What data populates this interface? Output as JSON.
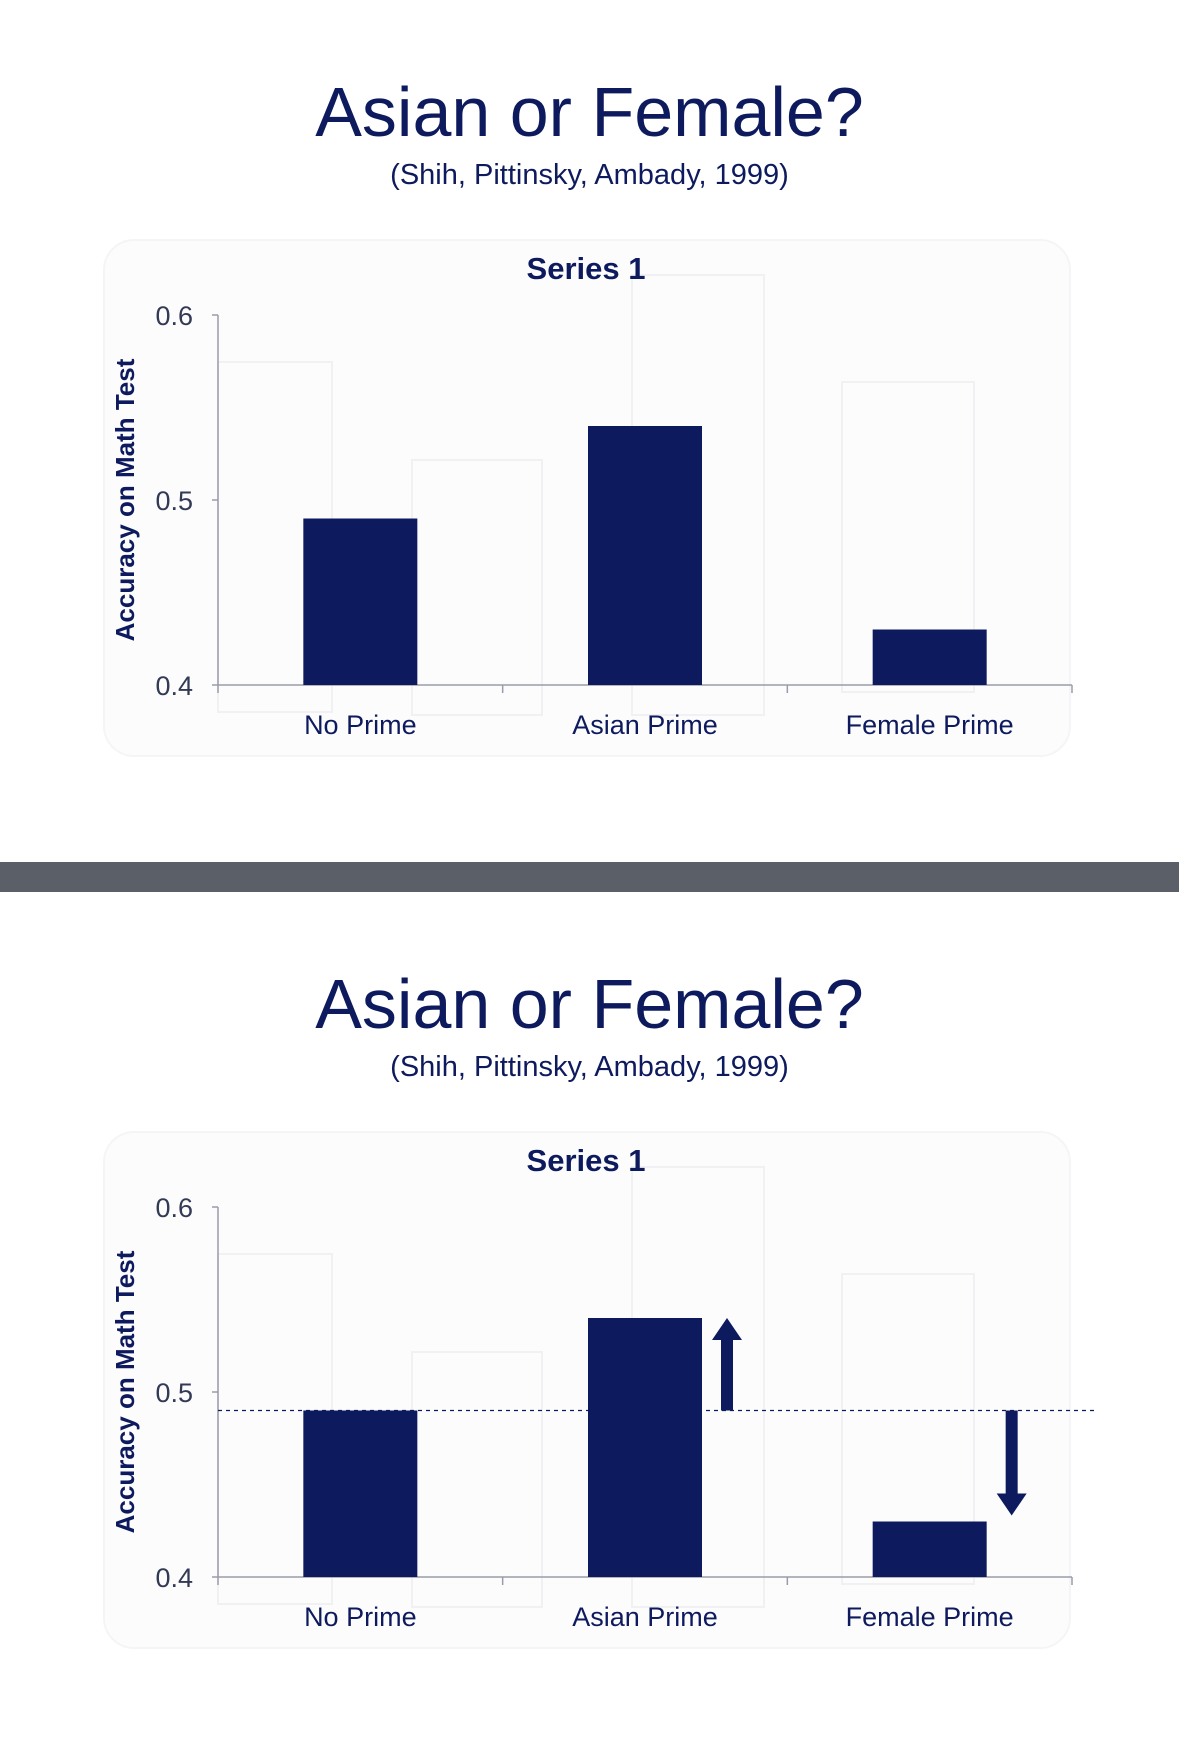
{
  "slides": [
    {
      "title": "Asian or Female?",
      "subtitle": "(Shih, Pittinsky, Ambady, 1999)",
      "show_baseline": false,
      "chart_data": {
        "type": "bar",
        "title": "Series 1",
        "xlabel": "",
        "ylabel": "Accuracy on Math Test",
        "categories": [
          "No Prime",
          "Asian Prime",
          "Female Prime"
        ],
        "values": [
          0.49,
          0.54,
          0.43
        ],
        "ylim": [
          0.4,
          0.6
        ],
        "yticks": [
          "0.6",
          "0.5",
          "0.4"
        ],
        "grid": false,
        "bar_color": "#0e1a5e"
      }
    },
    {
      "title": "Asian or Female?",
      "subtitle": "(Shih, Pittinsky, Ambady, 1999)",
      "show_baseline": true,
      "chart_data": {
        "type": "bar",
        "title": "Series 1",
        "xlabel": "",
        "ylabel": "Accuracy on Math Test",
        "categories": [
          "No Prime",
          "Asian Prime",
          "Female Prime"
        ],
        "values": [
          0.49,
          0.54,
          0.43
        ],
        "ylim": [
          0.4,
          0.6
        ],
        "yticks": [
          "0.6",
          "0.5",
          "0.4"
        ],
        "grid": false,
        "bar_color": "#0e1a5e",
        "baseline": 0.49,
        "arrows": [
          {
            "category": "Asian Prime",
            "direction": "up",
            "from": 0.49,
            "to": 0.54
          },
          {
            "category": "Female Prime",
            "direction": "down",
            "from": 0.49,
            "to": 0.43
          }
        ]
      }
    }
  ]
}
